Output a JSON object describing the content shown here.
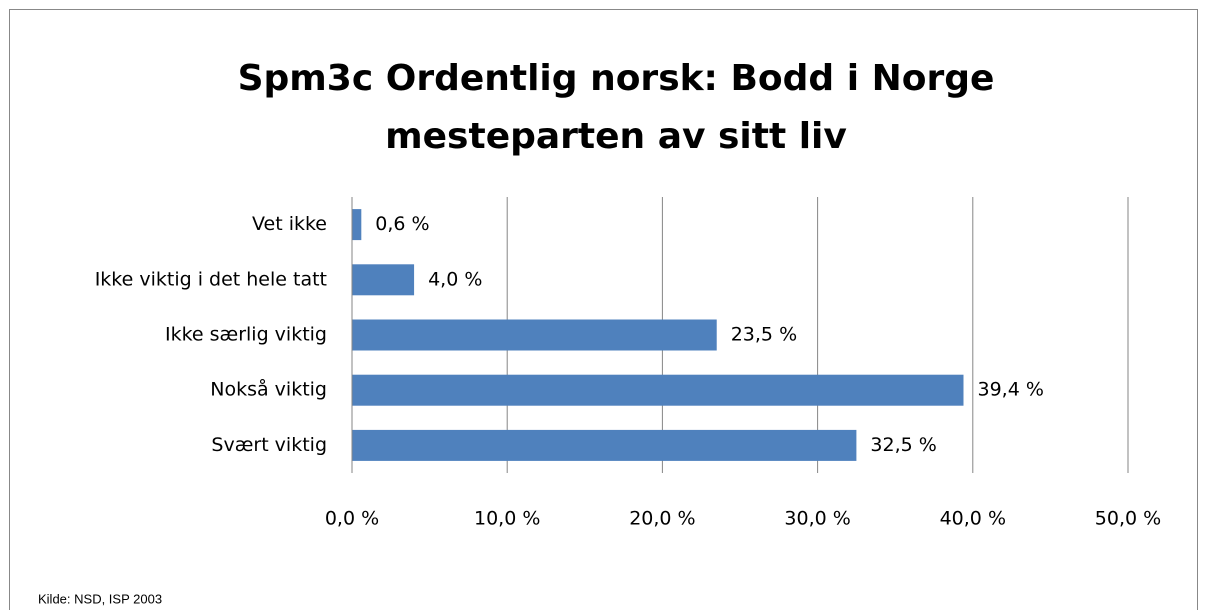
{
  "chart_data": {
    "type": "bar",
    "orientation": "horizontal",
    "title": [
      "Spm3c Ordentlig norsk: Bodd i Norge",
      "mesteparten av sitt liv"
    ],
    "categories": [
      "Vet ikke",
      "Ikke viktig i det hele tatt",
      "Ikke særlig viktig",
      "Nokså viktig",
      "Svært viktig"
    ],
    "values": [
      0.6,
      4.0,
      23.5,
      39.4,
      32.5
    ],
    "value_labels": [
      "0,6 %",
      "4,0 %",
      "23,5 %",
      "39,4 %",
      "32,5 %"
    ],
    "color": "#4f81bd",
    "xlim": [
      0,
      50
    ],
    "xticks": [
      {
        "value": 0,
        "label": "0,0 %"
      },
      {
        "value": 10,
        "label": "10,0 %"
      },
      {
        "value": 20,
        "label": "20,0 %"
      },
      {
        "value": 30,
        "label": "30,0 %"
      },
      {
        "value": 40,
        "label": "40,0 %"
      },
      {
        "value": 50,
        "label": "50,0 %"
      }
    ],
    "grid": true,
    "source": "Kilde: NSD, ISP 2003"
  }
}
